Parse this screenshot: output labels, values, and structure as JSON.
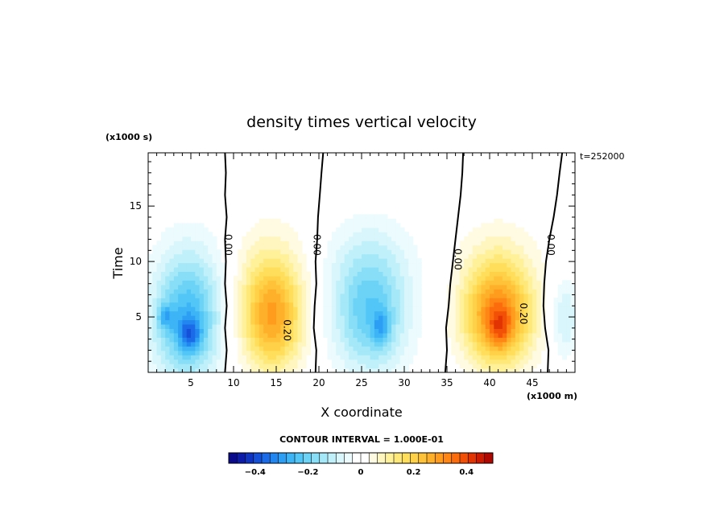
{
  "chart_data": {
    "type": "heatmap",
    "title": "density times vertical velocity",
    "xlabel": "X coordinate",
    "ylabel": "Time",
    "x_unit": "(x1000 m)",
    "y_unit": "(x1000 s)",
    "time_label": "t=252000",
    "xlim": [
      0,
      50
    ],
    "ylim": [
      0,
      19.8
    ],
    "x_ticks": [
      5,
      10,
      15,
      20,
      25,
      30,
      35,
      40,
      45
    ],
    "y_ticks": [
      5,
      10,
      15
    ],
    "zero_contours": [
      {
        "label": "0.00",
        "points": [
          [
            9.0,
            0
          ],
          [
            9.2,
            2
          ],
          [
            9.0,
            4
          ],
          [
            9.2,
            6
          ],
          [
            9.0,
            8
          ],
          [
            9.1,
            10
          ],
          [
            9.0,
            12
          ],
          [
            9.2,
            14
          ],
          [
            9.0,
            16
          ],
          [
            9.1,
            18
          ],
          [
            9.0,
            19.8
          ]
        ]
      },
      {
        "label": "0.00",
        "points": [
          [
            19.6,
            0
          ],
          [
            19.7,
            2
          ],
          [
            19.4,
            4
          ],
          [
            19.5,
            6
          ],
          [
            19.7,
            8
          ],
          [
            19.6,
            10
          ],
          [
            19.8,
            12
          ],
          [
            19.9,
            14
          ],
          [
            20.1,
            16
          ],
          [
            20.3,
            18
          ],
          [
            20.5,
            19.8
          ]
        ]
      },
      {
        "label": "0.00",
        "points": [
          [
            34.8,
            0
          ],
          [
            35.0,
            2
          ],
          [
            34.9,
            4
          ],
          [
            35.2,
            6
          ],
          [
            35.4,
            8
          ],
          [
            35.7,
            10
          ],
          [
            36.0,
            12
          ],
          [
            36.3,
            14
          ],
          [
            36.6,
            16
          ],
          [
            36.8,
            18
          ],
          [
            36.9,
            19.8
          ]
        ]
      },
      {
        "label": "0.00",
        "points": [
          [
            46.8,
            0
          ],
          [
            46.9,
            2
          ],
          [
            46.5,
            4
          ],
          [
            46.3,
            6
          ],
          [
            46.4,
            8
          ],
          [
            46.6,
            10
          ],
          [
            47.0,
            12
          ],
          [
            47.5,
            14
          ],
          [
            47.9,
            16
          ],
          [
            48.2,
            18
          ],
          [
            48.5,
            19.8
          ]
        ]
      }
    ],
    "contour_labels": [
      {
        "text": "0.00",
        "x": 9.0,
        "y": 11.5
      },
      {
        "text": "0.00",
        "x": 19.4,
        "y": 11.5
      },
      {
        "text": "0.00",
        "x": 35.9,
        "y": 10.2
      },
      {
        "text": "0.00",
        "x": 46.8,
        "y": 11.5
      },
      {
        "text": "0.20",
        "x": 15.9,
        "y": 3.8
      },
      {
        "text": "0.20",
        "x": 43.6,
        "y": 5.3
      }
    ],
    "features": [
      {
        "cx": 4.5,
        "cy": 4.0,
        "rx": 5.0,
        "ry": 6.5,
        "amp": -0.22
      },
      {
        "cx": 4.8,
        "cy": 8.5,
        "rx": 5.2,
        "ry": 6.0,
        "amp": -0.08
      },
      {
        "cx": 2.0,
        "cy": 5.0,
        "rx": 1.2,
        "ry": 1.4,
        "amp": -0.12
      },
      {
        "cx": 4.9,
        "cy": 3.5,
        "rx": 1.6,
        "ry": 1.8,
        "amp": -0.15
      },
      {
        "cx": 14.5,
        "cy": 5.0,
        "rx": 4.5,
        "ry": 6.0,
        "amp": 0.28
      },
      {
        "cx": 14.2,
        "cy": 10.0,
        "rx": 5.5,
        "ry": 5.5,
        "amp": 0.05
      },
      {
        "cx": 26.0,
        "cy": 5.0,
        "rx": 5.5,
        "ry": 6.5,
        "amp": -0.2
      },
      {
        "cx": 26.0,
        "cy": 10.0,
        "rx": 6.5,
        "ry": 5.5,
        "amp": -0.07
      },
      {
        "cx": 27.3,
        "cy": 4.0,
        "rx": 1.3,
        "ry": 2.0,
        "amp": -0.12
      },
      {
        "cx": 41.0,
        "cy": 5.0,
        "rx": 5.0,
        "ry": 5.5,
        "amp": 0.33
      },
      {
        "cx": 41.2,
        "cy": 4.0,
        "rx": 1.6,
        "ry": 2.2,
        "amp": 0.1
      },
      {
        "cx": 41.0,
        "cy": 10.0,
        "rx": 6.0,
        "ry": 5.0,
        "amp": 0.06
      },
      {
        "cx": 48.8,
        "cy": 5.0,
        "rx": 2.0,
        "ry": 4.5,
        "amp": -0.1
      }
    ],
    "colorbar": {
      "label": "CONTOUR INTERVAL = 1.000E-01",
      "range": [
        -0.5,
        0.5
      ],
      "tick_values": [
        -0.4,
        -0.2,
        0,
        0.2,
        0.4
      ],
      "tick_labels": [
        "−0.4",
        "−0.2",
        "0",
        "0.2",
        "0.4"
      ],
      "colors": [
        "#0a0a8c",
        "#0d1ca8",
        "#1034c2",
        "#1550d8",
        "#1b6be8",
        "#2286f0",
        "#2c9ff4",
        "#3cb4f5",
        "#52c6f6",
        "#6cd3f6",
        "#88def7",
        "#a5e8f8",
        "#c0f0fa",
        "#d8f6fb",
        "#ecfbfd",
        "#ffffff",
        "#ffffff",
        "#fffbe2",
        "#fff5be",
        "#fff09a",
        "#ffe87a",
        "#ffde5c",
        "#ffd148",
        "#ffc238",
        "#ffb02a",
        "#ff9c1e",
        "#ff8614",
        "#fc6c0c",
        "#f25006",
        "#e23402",
        "#cc1a00",
        "#b00800"
      ]
    }
  }
}
